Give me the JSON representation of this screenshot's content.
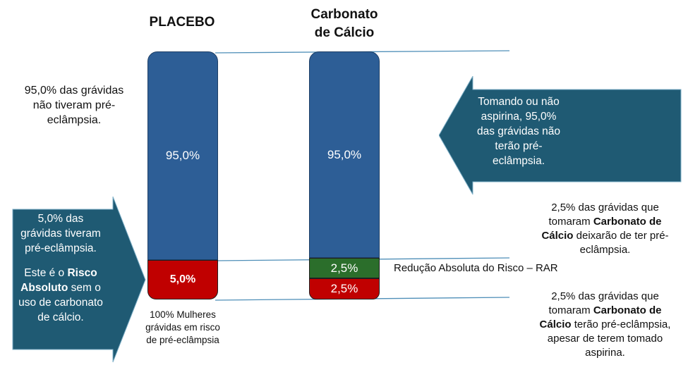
{
  "columns": {
    "placebo": {
      "title": "PLACEBO"
    },
    "calcium": {
      "title_line1": "Carbonato",
      "title_line2": "de Cálcio"
    }
  },
  "bars": {
    "placebo": {
      "no_preeclampsia_pct": 95.0,
      "no_preeclampsia_label": "95,0%",
      "preeclampsia_pct": 5.0,
      "preeclampsia_label": "5,0%"
    },
    "calcium": {
      "no_preeclampsia_pct": 95.0,
      "no_preeclampsia_label": "95,0%",
      "rar_pct": 2.5,
      "rar_label": "2,5%",
      "preeclampsia_pct": 2.5,
      "preeclampsia_label": "2,5%"
    }
  },
  "colors": {
    "blue": "#2D5E96",
    "red": "#C00000",
    "green": "#2B6E2B",
    "arrow": "#1F5A73",
    "line": "#4F8FB8"
  },
  "texts": {
    "left_note": [
      "95,0% das grávidas",
      "não tiveram pré-",
      "eclâmpsia."
    ],
    "bottom_note": [
      "100% Mulheres",
      "grávidas em risco",
      "de pré-eclâmpsia"
    ],
    "rar_label": "Redução Absoluta do Risco – RAR",
    "right_top": {
      "line1": "2,5% das grávidas que",
      "line2_pre": "tomaram ",
      "line2_bold": "Carbonato de",
      "line3_bold": "Cálcio",
      "line3_post": " deixarão de ter pré-",
      "line4": "eclâmpsia."
    },
    "right_bottom": {
      "line1": "2,5% das grávidas que",
      "line2_pre": "tomaram ",
      "line2_bold": "Carbonato de",
      "line3_bold": "Cálcio",
      "line3_post": " terão pré-eclâmpsia,",
      "line4": "apesar de terem tomado",
      "line5": "aspirina."
    }
  },
  "right_arrow_text": [
    "Tomando ou não",
    "aspirina, 95,0%",
    "das grávidas não",
    "terão pré-",
    "eclâmpsia."
  ],
  "left_arrow_text": {
    "l1": "5,0% das",
    "l2": "grávidas tiveram",
    "l3": "pré-eclâmpsia.",
    "l4_pre": "Este é o ",
    "l4_bold": "Risco",
    "l5_bold": "Absoluto",
    "l5_post": " sem o",
    "l6": "uso de carbonato",
    "l7": "de cálcio."
  }
}
